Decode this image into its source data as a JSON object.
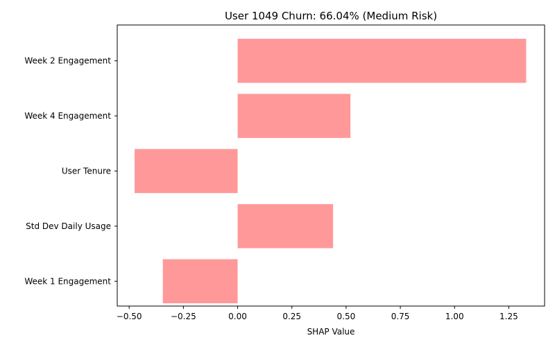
{
  "chart_data": {
    "type": "bar",
    "orientation": "horizontal",
    "title": "User 1049 Churn: 66.04% (Medium Risk)",
    "xlabel": "SHAP Value",
    "ylabel": "",
    "categories": [
      "Week 2 Engagement",
      "Week 4 Engagement",
      "User Tenure",
      "Std Dev Daily Usage",
      "Week 1 Engagement"
    ],
    "values": [
      1.33,
      0.52,
      -0.475,
      0.44,
      -0.345
    ],
    "xlim": [
      -0.555,
      1.415
    ],
    "xticks": [
      -0.5,
      -0.25,
      0.0,
      0.25,
      0.5,
      0.75,
      1.0,
      1.25
    ],
    "xtick_labels": [
      "−0.50",
      "−0.25",
      "0.00",
      "0.25",
      "0.50",
      "0.75",
      "1.00",
      "1.25"
    ],
    "bar_color": "#ff9999",
    "grid": false,
    "legend": "none"
  }
}
